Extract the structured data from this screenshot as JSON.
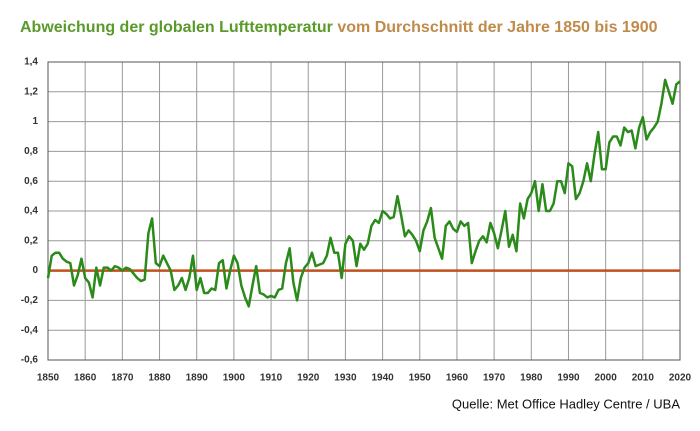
{
  "chart_data": {
    "type": "line",
    "title": "Abweichung der globalen Lufttemperatur",
    "subtitle": "vom Durchschnitt der Jahre 1850 bis 1900",
    "source": "Quelle: Met Office Hadley Centre / UBA",
    "x": [
      1850,
      1851,
      1852,
      1853,
      1854,
      1855,
      1856,
      1857,
      1858,
      1859,
      1860,
      1861,
      1862,
      1863,
      1864,
      1865,
      1866,
      1867,
      1868,
      1869,
      1870,
      1871,
      1872,
      1873,
      1874,
      1875,
      1876,
      1877,
      1878,
      1879,
      1880,
      1881,
      1882,
      1883,
      1884,
      1885,
      1886,
      1887,
      1888,
      1889,
      1890,
      1891,
      1892,
      1893,
      1894,
      1895,
      1896,
      1897,
      1898,
      1899,
      1900,
      1901,
      1902,
      1903,
      1904,
      1905,
      1906,
      1907,
      1908,
      1909,
      1910,
      1911,
      1912,
      1913,
      1914,
      1915,
      1916,
      1917,
      1918,
      1919,
      1920,
      1921,
      1922,
      1923,
      1924,
      1925,
      1926,
      1927,
      1928,
      1929,
      1930,
      1931,
      1932,
      1933,
      1934,
      1935,
      1936,
      1937,
      1938,
      1939,
      1940,
      1941,
      1942,
      1943,
      1944,
      1945,
      1946,
      1947,
      1948,
      1949,
      1950,
      1951,
      1952,
      1953,
      1954,
      1955,
      1956,
      1957,
      1958,
      1959,
      1960,
      1961,
      1962,
      1963,
      1964,
      1965,
      1966,
      1967,
      1968,
      1969,
      1970,
      1971,
      1972,
      1973,
      1974,
      1975,
      1976,
      1977,
      1978,
      1979,
      1980,
      1981,
      1982,
      1983,
      1984,
      1985,
      1986,
      1987,
      1988,
      1989,
      1990,
      1991,
      1992,
      1993,
      1994,
      1995,
      1996,
      1997,
      1998,
      1999,
      2000,
      2001,
      2002,
      2003,
      2004,
      2005,
      2006,
      2007,
      2008,
      2009,
      2010,
      2011,
      2012,
      2013,
      2014,
      2015,
      2016,
      2017,
      2018,
      2019,
      2020
    ],
    "series": [
      {
        "color": "#2a8a1a",
        "values": [
          -0.05,
          0.1,
          0.12,
          0.12,
          0.08,
          0.06,
          0.05,
          -0.1,
          -0.03,
          0.08,
          -0.05,
          -0.08,
          -0.18,
          0.02,
          -0.1,
          0.02,
          0.02,
          0.0,
          0.03,
          0.02,
          0.0,
          0.02,
          0.01,
          -0.02,
          -0.05,
          -0.07,
          -0.06,
          0.25,
          0.35,
          0.05,
          0.03,
          0.1,
          0.05,
          0.0,
          -0.13,
          -0.1,
          -0.05,
          -0.13,
          -0.05,
          0.1,
          -0.13,
          -0.05,
          -0.15,
          -0.15,
          -0.12,
          -0.13,
          0.05,
          0.07,
          -0.12,
          0.0,
          0.1,
          0.05,
          -0.1,
          -0.18,
          -0.24,
          -0.1,
          0.03,
          -0.15,
          -0.16,
          -0.18,
          -0.17,
          -0.18,
          -0.13,
          -0.12,
          0.05,
          0.15,
          -0.08,
          -0.2,
          -0.05,
          0.02,
          0.05,
          0.12,
          0.03,
          0.04,
          0.05,
          0.1,
          0.22,
          0.12,
          0.12,
          -0.05,
          0.18,
          0.23,
          0.2,
          0.03,
          0.18,
          0.14,
          0.18,
          0.3,
          0.34,
          0.32,
          0.4,
          0.38,
          0.35,
          0.36,
          0.5,
          0.37,
          0.23,
          0.27,
          0.24,
          0.2,
          0.13,
          0.27,
          0.33,
          0.42,
          0.22,
          0.15,
          0.08,
          0.3,
          0.33,
          0.28,
          0.26,
          0.33,
          0.3,
          0.32,
          0.05,
          0.13,
          0.2,
          0.23,
          0.19,
          0.32,
          0.25,
          0.15,
          0.27,
          0.4,
          0.16,
          0.24,
          0.13,
          0.45,
          0.35,
          0.48,
          0.52,
          0.6,
          0.4,
          0.58,
          0.4,
          0.4,
          0.45,
          0.6,
          0.6,
          0.52,
          0.72,
          0.7,
          0.48,
          0.52,
          0.6,
          0.72,
          0.6,
          0.78,
          0.93,
          0.68,
          0.68,
          0.86,
          0.9,
          0.9,
          0.84,
          0.96,
          0.93,
          0.94,
          0.82,
          0.96,
          1.03,
          0.88,
          0.93,
          0.96,
          1.0,
          1.12,
          1.28,
          1.2,
          1.12,
          1.25,
          1.27
        ]
      }
    ],
    "reference_line": {
      "value": 0,
      "color": "#c0501d"
    },
    "xlim": [
      1850,
      2020
    ],
    "xticks": [
      1850,
      1860,
      1870,
      1880,
      1890,
      1900,
      1910,
      1920,
      1930,
      1940,
      1950,
      1960,
      1970,
      1980,
      1990,
      2000,
      2010,
      2020
    ],
    "ylim": [
      -0.6,
      1.4
    ],
    "yticks": [
      {
        "value": -0.6,
        "label": "-0,6"
      },
      {
        "value": -0.4,
        "label": "-0,4"
      },
      {
        "value": -0.2,
        "label": "-0,2"
      },
      0,
      {
        "value": 0.2,
        "label": "0,2"
      },
      {
        "value": 0.4,
        "label": "0,4"
      },
      {
        "value": 0.6,
        "label": "0,6"
      },
      {
        "value": 0.8,
        "label": "0,8"
      },
      1,
      {
        "value": 1.2,
        "label": "1,2"
      },
      {
        "value": 1.4,
        "label": "1,4"
      }
    ],
    "grid": true
  }
}
